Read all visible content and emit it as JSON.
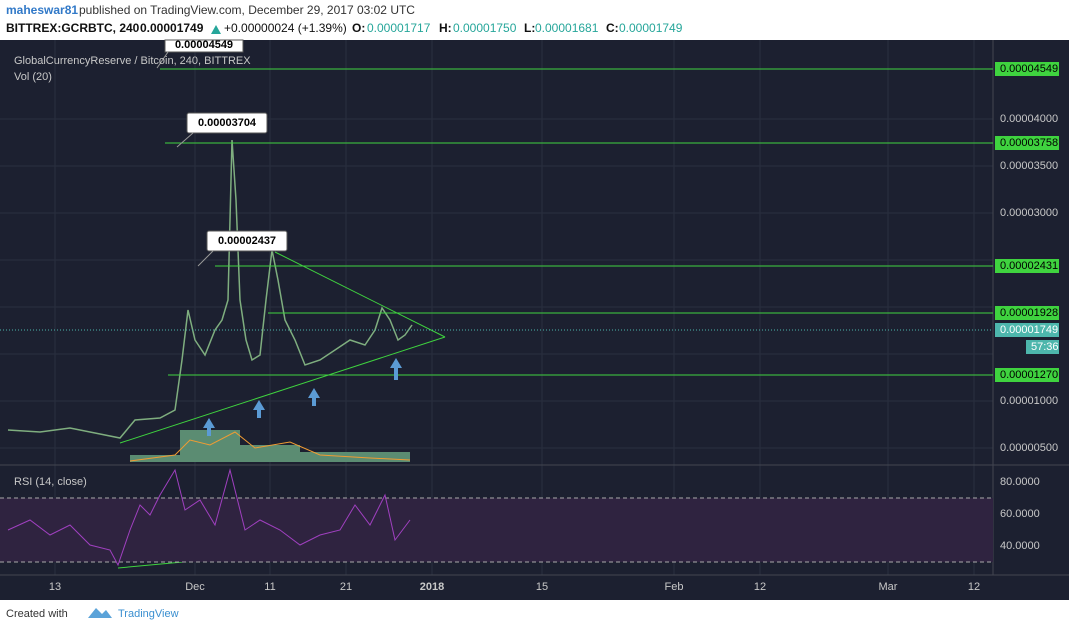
{
  "header": {
    "author": "maheswar81",
    "published": "published on TradingView.com, December 29, 2017 03:02 UTC",
    "symbol": "BITTREX:GCRBTC, 240",
    "price": "0.00001749",
    "change": "+0.00000024 (+1.39%)",
    "o_label": "O:",
    "o": "0.00001717",
    "h_label": "H:",
    "h": "0.00001750",
    "l_label": "L:",
    "l": "0.00001681",
    "c_label": "C:",
    "c": "0.00001749"
  },
  "legend": {
    "pair": "GlobalCurrencyReserve / Bitcoin, 240, BITTREX",
    "volume": "Vol (20)",
    "rsi": "RSI (14, close)"
  },
  "callouts": [
    "0.00004549",
    "0.00003704",
    "0.00002437"
  ],
  "price_axis": [
    "0.00004000",
    "0.00003500",
    "0.00003000",
    "0.00001000",
    "0.00000500"
  ],
  "levels": [
    "0.00004549",
    "0.00003758",
    "0.00002431",
    "0.00001928",
    "0.00001270"
  ],
  "current_price": "0.00001749",
  "countdown": "57:36",
  "rsi_axis": [
    "80.0000",
    "60.0000",
    "40.0000"
  ],
  "time_axis": [
    "13",
    "Dec",
    "11",
    "21",
    "2018",
    "15",
    "Feb",
    "12",
    "Mar",
    "12"
  ],
  "footer": {
    "created": "Created with",
    "brand": "TradingView"
  }
}
